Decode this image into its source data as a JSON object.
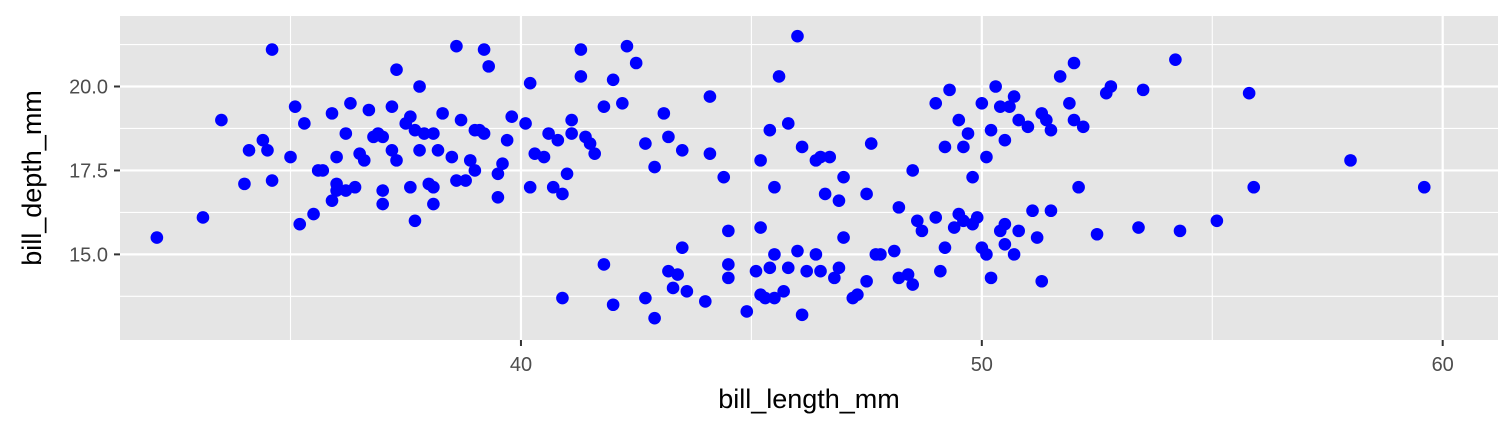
{
  "chart_data": {
    "type": "scatter",
    "title": "",
    "xlabel": "bill_length_mm",
    "ylabel": "bill_depth_mm",
    "xlim": [
      31.3,
      61.2
    ],
    "ylim": [
      12.45,
      22.1
    ],
    "x_ticks": [
      40,
      50,
      60
    ],
    "x_tick_labels": [
      "40",
      "50",
      "60"
    ],
    "y_ticks": [
      15.0,
      17.5,
      20.0
    ],
    "y_tick_labels": [
      "15.0",
      "17.5",
      "20.0"
    ],
    "grid": true,
    "colors": {
      "panel": "#e5e5e5",
      "grid": "#ffffff",
      "point": "#0000ff"
    },
    "series": [
      {
        "points": [
          [
            32.1,
            15.5
          ],
          [
            33.1,
            16.1
          ],
          [
            33.5,
            19.0
          ],
          [
            34.0,
            17.1
          ],
          [
            34.1,
            18.1
          ],
          [
            34.4,
            18.4
          ],
          [
            34.5,
            18.1
          ],
          [
            34.6,
            21.1
          ],
          [
            34.6,
            17.2
          ],
          [
            35.0,
            17.9
          ],
          [
            35.1,
            19.4
          ],
          [
            35.2,
            15.9
          ],
          [
            35.3,
            18.9
          ],
          [
            35.5,
            16.2
          ],
          [
            35.6,
            17.5
          ],
          [
            35.7,
            17.5
          ],
          [
            35.9,
            19.2
          ],
          [
            35.9,
            16.6
          ],
          [
            36.0,
            17.9
          ],
          [
            36.0,
            17.1
          ],
          [
            36.0,
            16.9
          ],
          [
            36.2,
            18.6
          ],
          [
            36.2,
            16.9
          ],
          [
            36.3,
            19.5
          ],
          [
            36.4,
            17.0
          ],
          [
            36.5,
            18.0
          ],
          [
            36.6,
            17.8
          ],
          [
            36.7,
            19.3
          ],
          [
            36.8,
            18.5
          ],
          [
            36.9,
            18.6
          ],
          [
            37.0,
            16.9
          ],
          [
            37.0,
            16.5
          ],
          [
            37.2,
            18.1
          ],
          [
            37.2,
            19.4
          ],
          [
            37.3,
            17.8
          ],
          [
            37.3,
            20.5
          ],
          [
            37.5,
            18.9
          ],
          [
            37.6,
            19.1
          ],
          [
            37.6,
            17.0
          ],
          [
            37.7,
            18.7
          ],
          [
            37.7,
            16.0
          ],
          [
            37.8,
            20.0
          ],
          [
            37.8,
            18.1
          ],
          [
            37.9,
            18.6
          ],
          [
            38.1,
            18.6
          ],
          [
            38.1,
            17.0
          ],
          [
            38.1,
            16.5
          ],
          [
            38.2,
            18.1
          ],
          [
            38.3,
            19.2
          ],
          [
            38.5,
            17.9
          ],
          [
            38.6,
            21.2
          ],
          [
            38.6,
            17.2
          ],
          [
            38.7,
            19.0
          ],
          [
            38.8,
            17.2
          ],
          [
            38.9,
            17.8
          ],
          [
            39.0,
            18.7
          ],
          [
            39.1,
            18.7
          ],
          [
            39.2,
            21.1
          ],
          [
            39.2,
            18.6
          ],
          [
            39.3,
            20.6
          ],
          [
            39.5,
            17.4
          ],
          [
            39.5,
            16.7
          ],
          [
            39.6,
            17.7
          ],
          [
            39.7,
            18.4
          ],
          [
            39.8,
            19.1
          ],
          [
            40.1,
            18.9
          ],
          [
            40.2,
            17.0
          ],
          [
            40.3,
            18.0
          ],
          [
            40.5,
            17.9
          ],
          [
            40.6,
            18.6
          ],
          [
            40.7,
            17.0
          ],
          [
            40.8,
            18.4
          ],
          [
            40.9,
            16.8
          ],
          [
            41.0,
            17.4
          ],
          [
            41.1,
            18.6
          ],
          [
            41.3,
            20.3
          ],
          [
            41.4,
            18.5
          ],
          [
            41.5,
            18.3
          ],
          [
            41.6,
            18.0
          ],
          [
            41.8,
            19.4
          ],
          [
            42.0,
            20.2
          ],
          [
            42.2,
            19.5
          ],
          [
            42.3,
            21.2
          ],
          [
            42.5,
            20.7
          ],
          [
            42.7,
            18.3
          ],
          [
            42.9,
            17.6
          ],
          [
            43.1,
            19.2
          ],
          [
            43.2,
            18.5
          ],
          [
            43.5,
            18.1
          ],
          [
            44.1,
            19.7
          ],
          [
            44.1,
            18.0
          ],
          [
            44.4,
            17.3
          ],
          [
            45.2,
            17.8
          ],
          [
            45.4,
            18.7
          ],
          [
            45.5,
            17.0
          ],
          [
            45.6,
            20.3
          ],
          [
            45.8,
            18.9
          ],
          [
            46.0,
            21.5
          ],
          [
            46.1,
            18.2
          ],
          [
            46.4,
            17.8
          ],
          [
            46.5,
            17.9
          ],
          [
            46.7,
            17.9
          ],
          [
            46.9,
            16.6
          ],
          [
            47.0,
            17.3
          ],
          [
            47.5,
            16.8
          ],
          [
            47.6,
            18.3
          ],
          [
            48.2,
            16.4
          ],
          [
            48.5,
            17.5
          ],
          [
            49.0,
            19.5
          ],
          [
            49.2,
            18.2
          ],
          [
            49.3,
            19.9
          ],
          [
            49.5,
            19.0
          ],
          [
            49.6,
            18.2
          ],
          [
            49.7,
            18.6
          ],
          [
            49.8,
            17.3
          ],
          [
            50.0,
            19.5
          ],
          [
            50.1,
            17.9
          ],
          [
            50.2,
            18.7
          ],
          [
            50.3,
            20.0
          ],
          [
            50.4,
            19.4
          ],
          [
            50.5,
            18.4
          ],
          [
            50.6,
            19.4
          ],
          [
            50.7,
            19.7
          ],
          [
            50.8,
            19.0
          ],
          [
            51.0,
            18.8
          ],
          [
            51.3,
            19.2
          ],
          [
            51.4,
            19.0
          ],
          [
            51.5,
            18.7
          ],
          [
            51.7,
            20.3
          ],
          [
            51.9,
            19.5
          ],
          [
            52.0,
            19.0
          ],
          [
            52.0,
            20.7
          ],
          [
            52.2,
            18.8
          ],
          [
            52.7,
            19.8
          ],
          [
            52.8,
            20.0
          ],
          [
            53.5,
            19.9
          ],
          [
            54.2,
            20.8
          ],
          [
            55.8,
            19.8
          ],
          [
            58.0,
            17.8
          ],
          [
            40.9,
            13.7
          ],
          [
            42.0,
            13.5
          ],
          [
            42.7,
            13.7
          ],
          [
            42.9,
            13.1
          ],
          [
            43.2,
            14.5
          ],
          [
            43.3,
            14.0
          ],
          [
            43.4,
            14.4
          ],
          [
            43.5,
            15.2
          ],
          [
            43.6,
            13.9
          ],
          [
            44.0,
            13.6
          ],
          [
            44.5,
            14.3
          ],
          [
            44.5,
            15.7
          ],
          [
            44.9,
            13.3
          ],
          [
            45.1,
            14.5
          ],
          [
            45.2,
            13.8
          ],
          [
            45.3,
            13.7
          ],
          [
            45.4,
            14.6
          ],
          [
            45.5,
            13.7
          ],
          [
            45.7,
            13.9
          ],
          [
            45.8,
            14.6
          ],
          [
            46.1,
            13.2
          ],
          [
            46.2,
            14.5
          ],
          [
            46.4,
            15.0
          ],
          [
            46.5,
            14.5
          ],
          [
            46.8,
            14.3
          ],
          [
            46.9,
            14.6
          ],
          [
            47.2,
            13.7
          ],
          [
            47.3,
            13.8
          ],
          [
            47.5,
            14.2
          ],
          [
            47.7,
            15.0
          ],
          [
            48.1,
            15.1
          ],
          [
            48.2,
            14.3
          ],
          [
            48.4,
            14.4
          ],
          [
            48.5,
            14.1
          ],
          [
            48.7,
            15.7
          ],
          [
            49.0,
            16.1
          ],
          [
            49.1,
            14.5
          ],
          [
            49.2,
            15.2
          ],
          [
            49.4,
            15.8
          ],
          [
            49.5,
            16.2
          ],
          [
            49.6,
            16.0
          ],
          [
            49.8,
            15.9
          ],
          [
            49.9,
            16.1
          ],
          [
            50.0,
            15.2
          ],
          [
            50.1,
            15.0
          ],
          [
            50.2,
            14.3
          ],
          [
            50.4,
            15.7
          ],
          [
            50.5,
            15.9
          ],
          [
            50.7,
            15.0
          ],
          [
            50.8,
            15.7
          ],
          [
            51.1,
            16.3
          ],
          [
            51.3,
            14.2
          ],
          [
            51.5,
            16.3
          ],
          [
            52.5,
            15.6
          ],
          [
            53.4,
            15.8
          ],
          [
            54.3,
            15.7
          ],
          [
            55.1,
            16.0
          ],
          [
            55.9,
            17.0
          ],
          [
            59.6,
            17.0
          ],
          [
            41.1,
            19.0
          ],
          [
            41.8,
            14.7
          ],
          [
            44.5,
            14.7
          ],
          [
            45.2,
            15.8
          ],
          [
            45.5,
            15.0
          ],
          [
            46.0,
            15.1
          ],
          [
            46.6,
            16.8
          ],
          [
            47.0,
            15.5
          ],
          [
            47.8,
            15.0
          ],
          [
            48.6,
            16.0
          ],
          [
            50.5,
            15.3
          ],
          [
            51.2,
            15.5
          ],
          [
            52.1,
            17.0
          ],
          [
            40.2,
            20.1
          ],
          [
            41.3,
            21.1
          ],
          [
            37.0,
            18.5
          ],
          [
            38.0,
            17.1
          ],
          [
            39.0,
            17.5
          ]
        ]
      }
    ]
  }
}
